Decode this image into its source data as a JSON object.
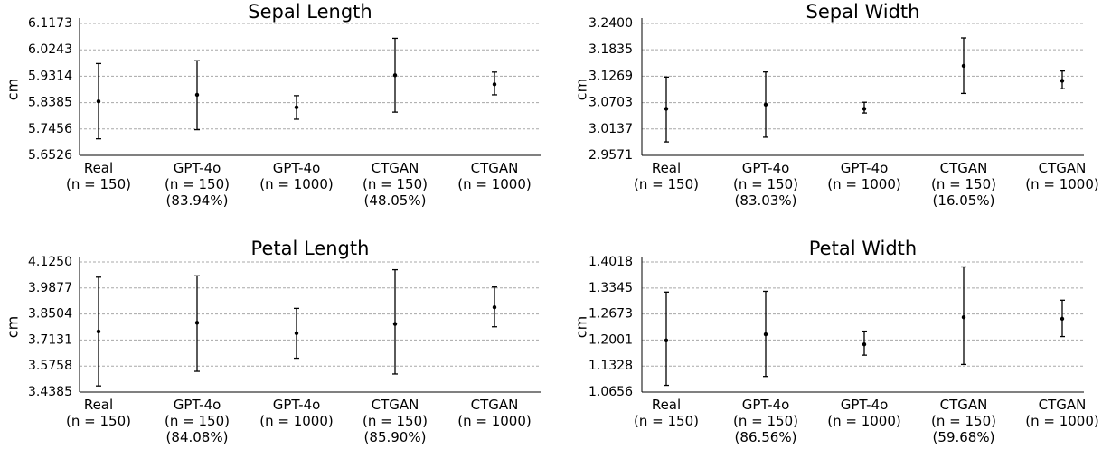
{
  "chart_data": [
    {
      "type": "scatter",
      "title": "Sepal Length",
      "ylabel": "cm",
      "ylim": [
        5.6526,
        6.1173
      ],
      "yticks": [
        "5.6526",
        "5.7456",
        "5.8385",
        "5.9314",
        "6.0243",
        "6.1173"
      ],
      "grid": true,
      "categories": [
        {
          "lines": [
            "Real",
            "(n = 150)"
          ]
        },
        {
          "lines": [
            "GPT-4o",
            "(n = 150)",
            "(83.94%)"
          ]
        },
        {
          "lines": [
            "GPT-4o",
            "(n = 1000)"
          ]
        },
        {
          "lines": [
            "CTGAN",
            "(n = 150)",
            "(48.05%)"
          ]
        },
        {
          "lines": [
            "CTGAN",
            "(n = 1000)"
          ]
        }
      ],
      "points": [
        {
          "mean": 5.843,
          "low": 5.711,
          "high": 5.976
        },
        {
          "mean": 5.866,
          "low": 5.743,
          "high": 5.986
        },
        {
          "mean": 5.822,
          "low": 5.78,
          "high": 5.863
        },
        {
          "mean": 5.935,
          "low": 5.805,
          "high": 6.065
        },
        {
          "mean": 5.903,
          "low": 5.866,
          "high": 5.946
        }
      ]
    },
    {
      "type": "scatter",
      "title": "Sepal Width",
      "ylabel": "cm",
      "ylim": [
        2.9571,
        3.24
      ],
      "yticks": [
        "2.9571",
        "3.0137",
        "3.0703",
        "3.1269",
        "3.1835",
        "3.2400"
      ],
      "grid": true,
      "categories": [
        {
          "lines": [
            "Real",
            "(n = 150)"
          ]
        },
        {
          "lines": [
            "GPT-4o",
            "(n = 150)",
            "(83.03%)"
          ]
        },
        {
          "lines": [
            "GPT-4o",
            "(n = 1000)"
          ]
        },
        {
          "lines": [
            "CTGAN",
            "(n = 150)",
            "(16.05%)"
          ]
        },
        {
          "lines": [
            "CTGAN",
            "(n = 1000)"
          ]
        }
      ],
      "points": [
        {
          "mean": 3.057,
          "low": 2.986,
          "high": 3.125
        },
        {
          "mean": 3.066,
          "low": 2.996,
          "high": 3.136
        },
        {
          "mean": 3.057,
          "low": 3.048,
          "high": 3.071
        },
        {
          "mean": 3.149,
          "low": 3.09,
          "high": 3.209
        },
        {
          "mean": 3.117,
          "low": 3.1,
          "high": 3.138
        }
      ]
    },
    {
      "type": "scatter",
      "title": "Petal Length",
      "ylabel": "cm",
      "ylim": [
        3.4385,
        4.125
      ],
      "yticks": [
        "3.4385",
        "3.5758",
        "3.7131",
        "3.8504",
        "3.9877",
        "4.1250"
      ],
      "grid": true,
      "categories": [
        {
          "lines": [
            "Real",
            "(n = 150)"
          ]
        },
        {
          "lines": [
            "GPT-4o",
            "(n = 150)",
            "(84.08%)"
          ]
        },
        {
          "lines": [
            "GPT-4o",
            "(n = 1000)"
          ]
        },
        {
          "lines": [
            "CTGAN",
            "(n = 150)",
            "(85.90%)"
          ]
        },
        {
          "lines": [
            "CTGAN",
            "(n = 1000)"
          ]
        }
      ],
      "points": [
        {
          "mean": 3.758,
          "low": 3.471,
          "high": 4.045
        },
        {
          "mean": 3.804,
          "low": 3.548,
          "high": 4.052
        },
        {
          "mean": 3.749,
          "low": 3.617,
          "high": 3.88
        },
        {
          "mean": 3.798,
          "low": 3.534,
          "high": 4.084
        },
        {
          "mean": 3.886,
          "low": 3.783,
          "high": 3.993
        }
      ]
    },
    {
      "type": "scatter",
      "title": "Petal Width",
      "ylabel": "cm",
      "ylim": [
        1.0656,
        1.4018
      ],
      "yticks": [
        "1.0656",
        "1.1328",
        "1.2001",
        "1.2673",
        "1.3345",
        "1.4018"
      ],
      "grid": true,
      "categories": [
        {
          "lines": [
            "Real",
            "(n = 150)"
          ]
        },
        {
          "lines": [
            "GPT-4o",
            "(n = 150)",
            "(86.56%)"
          ]
        },
        {
          "lines": [
            "GPT-4o",
            "(n = 1000)"
          ]
        },
        {
          "lines": [
            "CTGAN",
            "(n = 150)",
            "(59.68%)"
          ]
        },
        {
          "lines": [
            "CTGAN",
            "(n = 1000)"
          ]
        }
      ],
      "points": [
        {
          "mean": 1.199,
          "low": 1.083,
          "high": 1.324
        },
        {
          "mean": 1.215,
          "low": 1.106,
          "high": 1.326
        },
        {
          "mean": 1.189,
          "low": 1.161,
          "high": 1.223
        },
        {
          "mean": 1.259,
          "low": 1.137,
          "high": 1.389
        },
        {
          "mean": 1.255,
          "low": 1.209,
          "high": 1.303
        }
      ]
    }
  ]
}
